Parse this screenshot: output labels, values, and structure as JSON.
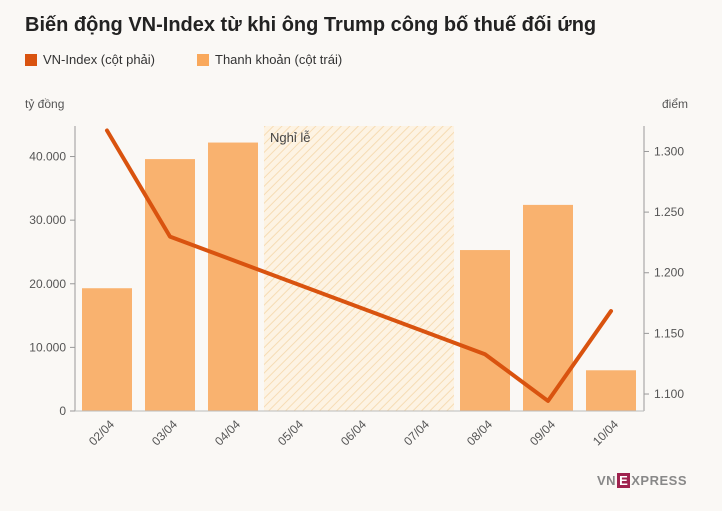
{
  "chart_data": {
    "type": "bar+line",
    "title": "Biến động VN-Index từ khi ông Trump công bố thuế đối ứng",
    "legend": [
      {
        "label": "VN-Index (cột phải)",
        "color": "#d9530f"
      },
      {
        "label": "Thanh khoản (cột trái)",
        "color": "#f9a85b"
      }
    ],
    "categories": [
      "02/04",
      "03/04",
      "04/04",
      "05/04",
      "06/04",
      "07/04",
      "08/04",
      "09/04",
      "10/04"
    ],
    "left_axis": {
      "label": "tỷ đồng",
      "ticks": [
        "0",
        "10.000",
        "20.000",
        "30.000",
        "40.000"
      ],
      "tick_values": [
        0,
        10000,
        20000,
        30000,
        40000
      ],
      "ylim": [
        0,
        44800
      ]
    },
    "right_axis": {
      "label": "điểm",
      "ticks": [
        "1.100",
        "1.150",
        "1.200",
        "1.250",
        "1.300"
      ],
      "tick_values": [
        1100,
        1150,
        1200,
        1250,
        1300
      ],
      "ylim": [
        1086,
        1321
      ]
    },
    "series": [
      {
        "name": "Thanh khoản (cột trái)",
        "kind": "bar",
        "axis": "left",
        "color": "#f9b26f",
        "values": [
          19300,
          39600,
          42200,
          null,
          null,
          null,
          25300,
          32400,
          6400
        ]
      },
      {
        "name": "VN-Index (cột phải)",
        "kind": "line",
        "axis": "right",
        "color": "#d9530f",
        "values": [
          1317.3,
          1229.8,
          null,
          null,
          null,
          null,
          1132.8,
          1094.3,
          1168.4
        ]
      }
    ],
    "annotations": [
      {
        "label": "Nghỉ lễ",
        "from_index": 3,
        "to_index": 5,
        "color": "#fbe6c6"
      }
    ]
  },
  "brand": {
    "left": "VN",
    "mark": "E",
    "right": "XPRESS"
  }
}
